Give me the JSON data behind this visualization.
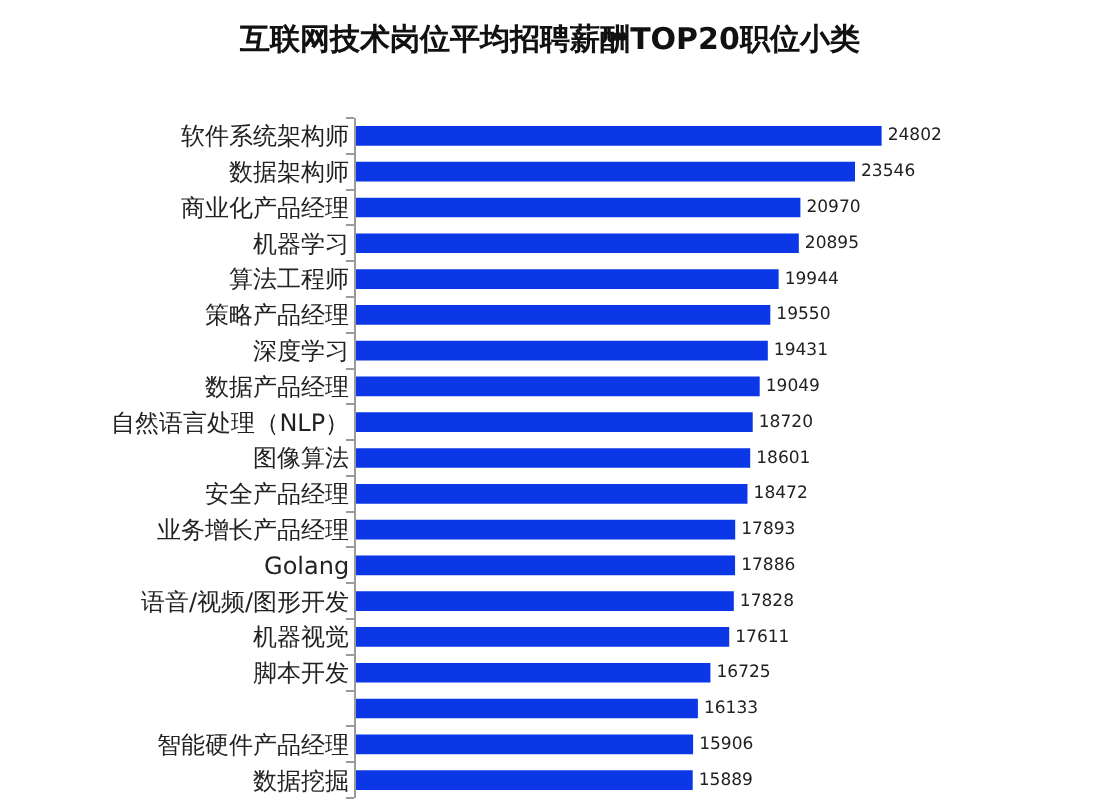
{
  "chart_data": {
    "type": "bar",
    "orientation": "horizontal",
    "title": "互联网技术岗位平均招聘薪酬TOP20职位小类",
    "categories": [
      "软件系统架构师",
      "数据架构师",
      "商业化产品经理",
      "机器学习",
      "算法工程师",
      "策略产品经理",
      "深度学习",
      "数据产品经理",
      "自然语言处理（NLP）",
      "图像算法",
      "安全产品经理",
      "业务增长产品经理",
      "Golang",
      "语音/视频/图形开发",
      "机器视觉",
      "脚本开发",
      null,
      "智能硬件产品经理",
      "数据挖掘"
    ],
    "values": [
      24802,
      23546,
      20970,
      20895,
      19944,
      19550,
      19431,
      19049,
      18720,
      18601,
      18472,
      17893,
      17886,
      17828,
      17611,
      16725,
      16133,
      15906,
      15889
    ],
    "color": "#0b37e6",
    "data_labels": true,
    "tick_labels": "y"
  }
}
